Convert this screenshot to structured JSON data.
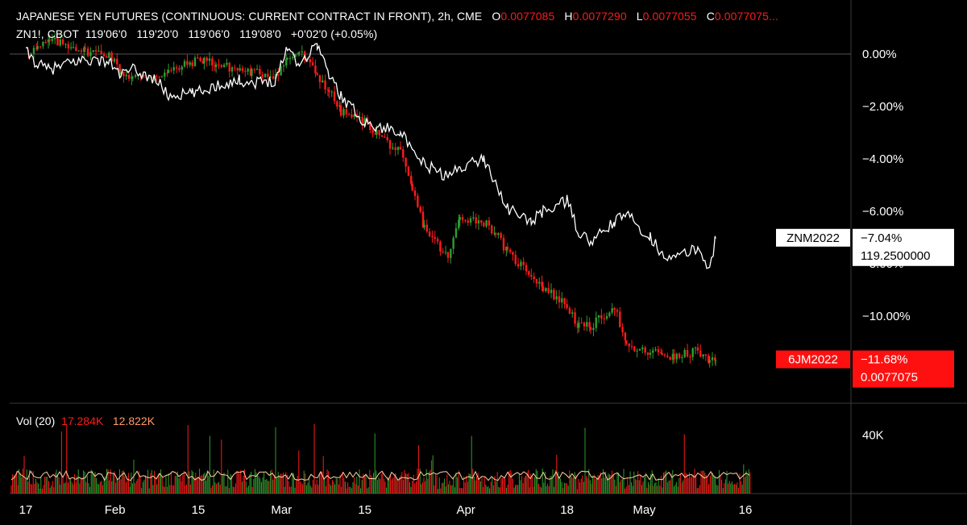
{
  "header": {
    "line1_title": "JAPANESE YEN FUTURES (CONTINUOUS: CURRENT CONTRACT IN FRONT), 2h, CME",
    "o_label": "O",
    "o_value": "0.0077085",
    "h_label": "H",
    "h_value": "0.0077290",
    "l_label": "L",
    "l_value": "0.0077055",
    "c_label": "C",
    "c_value": "0.0077075...",
    "line2": "ZN1!, CBOT  119'06'0   119'20'0   119'06'0   119'08'0   +0'02'0 (+0.05%)"
  },
  "volume_legend": {
    "label": "Vol (20)",
    "value1": "17.284K",
    "value2": "12.822K"
  },
  "colors": {
    "background": "#000000",
    "up": "#2e9e2e",
    "down": "#ff1a1a",
    "zn_line": "#ffffff",
    "grid": "#3a3a3a",
    "vol_ma": "#ffd0a0"
  },
  "chart_data": [
    {
      "type": "line",
      "title": "",
      "yscale": "percent change",
      "ylim": [
        -12.5,
        1.0
      ],
      "y_ticks": [
        "0.00%",
        "−2.00%",
        "−4.00%",
        "−6.00%",
        "−8.00%",
        "−10.00%"
      ],
      "x_ticks": [
        "17",
        "Feb",
        "15",
        "Mar",
        "15",
        "Apr",
        "18",
        "May",
        "16"
      ],
      "series": [
        {
          "name": "ZNM2022",
          "color": "#ffffff",
          "style": "line",
          "last_pct": "−7.04%",
          "last_price": "119.2500000",
          "x": [
            "01-17",
            "01-19",
            "01-21",
            "01-25",
            "01-27",
            "01-31",
            "02-02",
            "02-04",
            "02-08",
            "02-10",
            "02-14",
            "02-16",
            "02-18",
            "02-22",
            "02-24",
            "02-28",
            "03-02",
            "03-04",
            "03-07",
            "03-09",
            "03-11",
            "03-15",
            "03-17",
            "03-21",
            "03-23",
            "03-25",
            "03-29",
            "03-31",
            "04-04",
            "04-06",
            "04-08",
            "04-12",
            "04-14",
            "04-18",
            "04-20",
            "04-22",
            "04-26",
            "04-28",
            "05-02",
            "05-04",
            "05-06",
            "05-10",
            "05-12",
            "05-13"
          ],
          "values": [
            0.1,
            -0.4,
            -0.6,
            -0.3,
            -0.2,
            -0.3,
            -0.8,
            -0.6,
            -1.0,
            -1.6,
            -1.5,
            -1.4,
            -1.2,
            -1.0,
            -1.1,
            -1.0,
            0.3,
            -0.4,
            0.4,
            -0.8,
            -1.6,
            -2.6,
            -2.8,
            -2.9,
            -3.8,
            -4.2,
            -4.7,
            -4.3,
            -4.0,
            -4.9,
            -5.9,
            -6.4,
            -6.0,
            -5.6,
            -6.8,
            -7.2,
            -6.4,
            -6.1,
            -7.0,
            -7.6,
            -7.8,
            -7.4,
            -8.2,
            -7.04
          ]
        },
        {
          "name": "6JM2022",
          "color": "#ff1a1a",
          "style": "candles",
          "last_pct": "−11.68%",
          "last_price": "0.0077075",
          "x": [
            "01-17",
            "01-19",
            "01-21",
            "01-25",
            "01-27",
            "01-31",
            "02-02",
            "02-04",
            "02-08",
            "02-10",
            "02-14",
            "02-16",
            "02-18",
            "02-22",
            "02-24",
            "02-28",
            "03-02",
            "03-04",
            "03-07",
            "03-09",
            "03-11",
            "03-15",
            "03-17",
            "03-21",
            "03-23",
            "03-25",
            "03-29",
            "03-31",
            "04-04",
            "04-06",
            "04-08",
            "04-12",
            "04-14",
            "04-18",
            "04-20",
            "04-22",
            "04-26",
            "04-28",
            "05-02",
            "05-04",
            "05-06",
            "05-10",
            "05-12",
            "05-13"
          ],
          "values": [
            0.1,
            0.2,
            0.5,
            0.3,
            0.1,
            0.0,
            -0.7,
            -0.9,
            -0.8,
            -0.7,
            -0.3,
            -0.2,
            -0.4,
            -0.6,
            -0.7,
            -0.8,
            -0.2,
            0.1,
            -0.8,
            -1.4,
            -2.2,
            -2.6,
            -3.0,
            -3.8,
            -5.2,
            -6.6,
            -7.8,
            -6.2,
            -6.4,
            -6.8,
            -7.6,
            -8.4,
            -8.9,
            -9.6,
            -10.4,
            -10.4,
            -9.6,
            -11.2,
            -11.4,
            -11.4,
            -11.6,
            -11.3,
            -11.8,
            -11.68
          ]
        }
      ]
    },
    {
      "type": "bar",
      "title": "Vol (20)",
      "y_ticks": [
        "40K"
      ],
      "description_values": "volume per 2h bar, mixed up/down colored, with 20-period moving average",
      "ylim": [
        0,
        60000
      ],
      "ma_level": 12822,
      "highlighted_last": 17284
    }
  ]
}
